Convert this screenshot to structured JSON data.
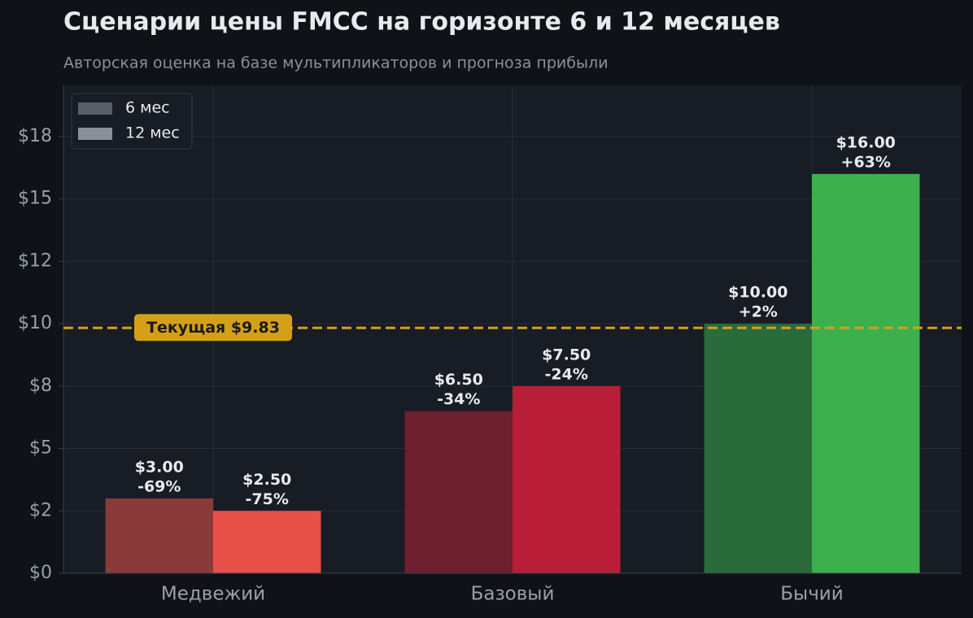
{
  "chart_data": {
    "type": "bar",
    "title": "Сценарии цены FMCC на горизонте 6 и 12 месяцев",
    "subtitle": "Авторская оценка на базе мультипликаторов и прогноза прибыли",
    "categories": [
      "Медвежий",
      "Базовый",
      "Бычий"
    ],
    "series": [
      {
        "name": "6 мес",
        "color": "#5a5e68",
        "bar_colors": [
          "#8b3a3a",
          "#6e1f30",
          "#2a6b3c"
        ],
        "values": [
          3,
          6.5,
          10
        ],
        "value_labels": [
          "$3.00",
          "$6.50",
          "$10.00"
        ],
        "change_labels": [
          "-69%",
          "-34%",
          "+2%"
        ]
      },
      {
        "name": "12 мес",
        "color": "#8a9099",
        "bar_colors": [
          "#e8504a",
          "#b91e38",
          "#3db04e"
        ],
        "values": [
          2.5,
          7.5,
          16
        ],
        "value_labels": [
          "$2.50",
          "$7.50",
          "$16.00"
        ],
        "change_labels": [
          "-75%",
          "-24%",
          "+63%"
        ]
      }
    ],
    "ylim": [
      0,
      19.55
    ],
    "yticks": [
      {
        "value": 0,
        "label": "$0"
      },
      {
        "value": 2.5,
        "label": "$2"
      },
      {
        "value": 5,
        "label": "$5"
      },
      {
        "value": 7.5,
        "label": "$8"
      },
      {
        "value": 10,
        "label": "$10"
      },
      {
        "value": 12.5,
        "label": "$12"
      },
      {
        "value": 15,
        "label": "$15"
      },
      {
        "value": 17.5,
        "label": "$18"
      }
    ],
    "reference_line": {
      "value": 9.83,
      "label": "Текущая $9.83",
      "color": "#d4a017"
    },
    "grid": true,
    "legend": "upper-left"
  }
}
